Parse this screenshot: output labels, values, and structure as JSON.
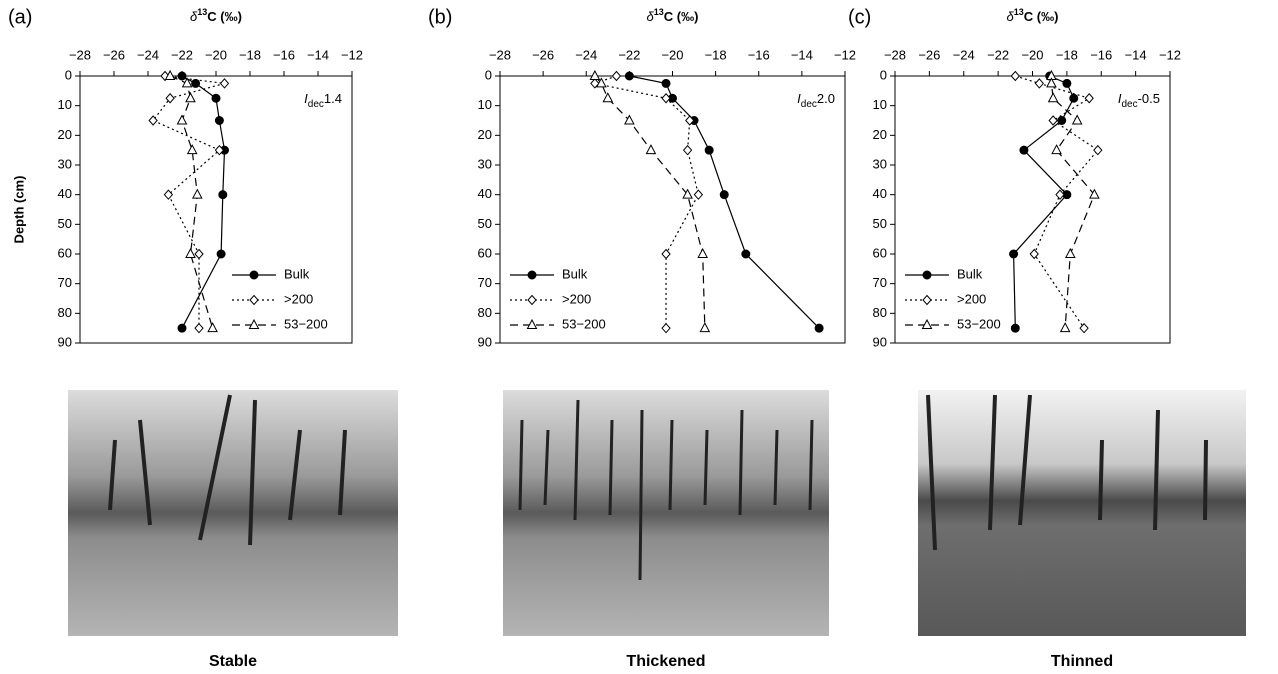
{
  "chart_data": [
    {
      "type": "line",
      "panel": "(a)",
      "x_label": {
        "prefix": "δ",
        "sup": "13",
        "rest": "C (‰)"
      },
      "y_label": "Depth (cm)",
      "annotation": {
        "italic": "I",
        "sub": "dec",
        "text": "1.4"
      },
      "caption": "Stable",
      "depths": [
        0,
        2.5,
        7.5,
        15,
        25,
        40,
        60,
        85
      ],
      "series": [
        {
          "name": "Bulk",
          "color": "#000000",
          "dash": "solid",
          "marker": "circle",
          "values": [
            -22,
            -21.2,
            -20,
            -19.8,
            -19.5,
            -19.6,
            -19.7,
            -22
          ]
        },
        {
          "name": ">200",
          "color": "#000000",
          "dash": "dotted",
          "marker": "diamond",
          "values": [
            -23,
            -19.5,
            -22.7,
            -23.7,
            -19.8,
            -22.8,
            -21,
            -21
          ]
        },
        {
          "name": "53−200",
          "color": "#000000",
          "dash": "dashed",
          "marker": "triangle",
          "values": [
            -22.7,
            -21.7,
            -21.5,
            -22,
            -21.4,
            -21.1,
            -21.5,
            -20.2
          ]
        }
      ],
      "xlim": [
        -28,
        -12
      ],
      "xticks": [
        {
          "value": -28,
          "label": "−28"
        },
        {
          "value": -26,
          "label": "−26"
        },
        {
          "value": -24,
          "label": "−24"
        },
        {
          "value": -22,
          "label": "−22"
        },
        {
          "value": -20,
          "label": "−20"
        },
        {
          "value": -18,
          "label": "−18"
        },
        {
          "value": -16,
          "label": "−16"
        },
        {
          "value": -14,
          "label": "−14"
        },
        {
          "value": -12,
          "label": "−12"
        }
      ],
      "ylim": [
        0,
        90
      ],
      "yticks": [
        0,
        10,
        20,
        30,
        40,
        50,
        60,
        70,
        80,
        90
      ],
      "y_inverted": true,
      "x_axis_top": true,
      "legend": "lower right"
    },
    {
      "type": "line",
      "panel": "(b)",
      "x_label": {
        "prefix": "δ",
        "sup": "13",
        "rest": "C (‰)"
      },
      "annotation": {
        "italic": "I",
        "sub": "dec",
        "text": "2.0"
      },
      "caption": "Thickened",
      "depths": [
        0,
        2.5,
        7.5,
        15,
        25,
        40,
        60,
        85
      ],
      "series": [
        {
          "name": "Bulk",
          "color": "#000000",
          "dash": "solid",
          "marker": "circle",
          "values": [
            -22,
            -20.3,
            -20,
            -19,
            -18.3,
            -17.6,
            -16.6,
            -13.2
          ]
        },
        {
          "name": ">200",
          "color": "#000000",
          "dash": "dotted",
          "marker": "diamond",
          "values": [
            -22.6,
            -23.6,
            -20.3,
            -19.2,
            -19.3,
            -18.8,
            -20.3,
            -20.3
          ]
        },
        {
          "name": "53−200",
          "color": "#000000",
          "dash": "dashed",
          "marker": "triangle",
          "values": [
            -23.6,
            -23.3,
            -23,
            -22,
            -21,
            -19.3,
            -18.6,
            -18.5
          ]
        }
      ],
      "xlim": [
        -28,
        -12
      ],
      "xticks": [
        {
          "value": -28,
          "label": "−28"
        },
        {
          "value": -26,
          "label": "−26"
        },
        {
          "value": -24,
          "label": "−24"
        },
        {
          "value": -22,
          "label": "−22"
        },
        {
          "value": -20,
          "label": "−20"
        },
        {
          "value": -18,
          "label": "−18"
        },
        {
          "value": -16,
          "label": "−16"
        },
        {
          "value": -14,
          "label": "−14"
        },
        {
          "value": -12,
          "label": "−12"
        }
      ],
      "ylim": [
        0,
        90
      ],
      "yticks": [
        0,
        10,
        20,
        30,
        40,
        50,
        60,
        70,
        80,
        90
      ],
      "y_inverted": true,
      "x_axis_top": true,
      "legend": "lower left"
    },
    {
      "type": "line",
      "panel": "(c)",
      "x_label": {
        "prefix": "δ",
        "sup": "13",
        "rest": "C (‰)"
      },
      "annotation": {
        "italic": "I",
        "sub": "dec",
        "text": "-0.5"
      },
      "caption": "Thinned",
      "depths": [
        0,
        2.5,
        7.5,
        15,
        25,
        40,
        60,
        85
      ],
      "series": [
        {
          "name": "Bulk",
          "color": "#000000",
          "dash": "solid",
          "marker": "circle",
          "values": [
            -19,
            -18,
            -17.6,
            -18.3,
            -20.5,
            -18,
            -21.1,
            -21
          ]
        },
        {
          "name": ">200",
          "color": "#000000",
          "dash": "dotted",
          "marker": "diamond",
          "values": [
            -21,
            -19.6,
            -16.7,
            -18.8,
            -16.2,
            -18.4,
            -19.9,
            -17
          ]
        },
        {
          "name": "53−200",
          "color": "#000000",
          "dash": "dashed",
          "marker": "triangle",
          "values": [
            -18.9,
            -18.9,
            -18.8,
            -17.4,
            -18.6,
            -16.4,
            -17.8,
            -18.1
          ]
        }
      ],
      "xlim": [
        -28,
        -12
      ],
      "xticks": [
        {
          "value": -28,
          "label": "−28"
        },
        {
          "value": -26,
          "label": "−26"
        },
        {
          "value": -24,
          "label": "−24"
        },
        {
          "value": -22,
          "label": "−22"
        },
        {
          "value": -20,
          "label": "−20"
        },
        {
          "value": -18,
          "label": "−18"
        },
        {
          "value": -16,
          "label": "−16"
        },
        {
          "value": -14,
          "label": "−14"
        },
        {
          "value": -12,
          "label": "−12"
        }
      ],
      "ylim": [
        0,
        90
      ],
      "yticks": [
        0,
        10,
        20,
        30,
        40,
        50,
        60,
        70,
        80,
        90
      ],
      "y_inverted": true,
      "x_axis_top": true,
      "legend": "lower left"
    }
  ]
}
